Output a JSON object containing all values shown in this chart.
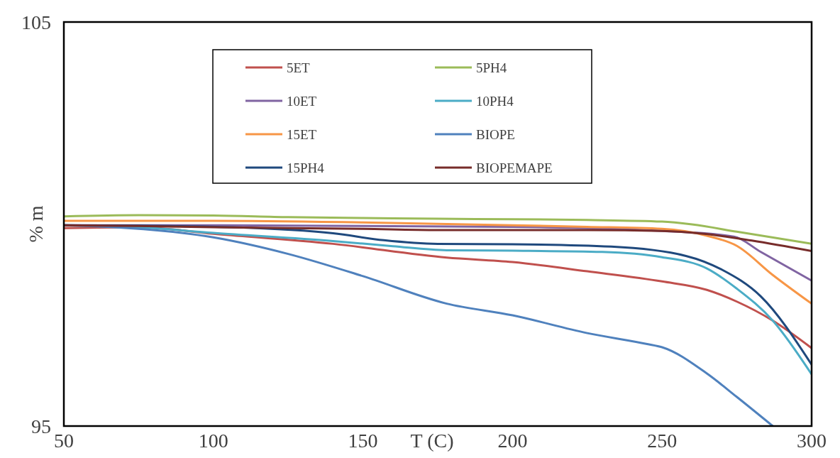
{
  "chart_data": {
    "type": "line",
    "xlabel": "T (C)",
    "ylabel": "% m",
    "xlim": [
      50,
      300
    ],
    "xticks": [
      50,
      100,
      150,
      200,
      250,
      300
    ],
    "ylim": [
      95,
      105
    ],
    "yticks": [
      95,
      105
    ],
    "legend": "top",
    "series": [
      {
        "name": "5ET",
        "color": "#c0504d",
        "x": [
          50,
          75,
          100,
          140,
          178,
          200,
          225,
          250,
          265,
          275,
          287,
          300
        ],
        "values": [
          99.9,
          99.92,
          99.76,
          99.51,
          99.17,
          99.06,
          98.83,
          98.58,
          98.37,
          98.08,
          97.61,
          96.93
        ]
      },
      {
        "name": "5PH4",
        "color": "#9bbb59",
        "x": [
          50,
          75,
          100,
          125,
          150,
          175,
          200,
          225,
          250,
          260,
          275,
          300
        ],
        "values": [
          100.19,
          100.22,
          100.21,
          100.17,
          100.15,
          100.13,
          100.12,
          100.1,
          100.06,
          99.99,
          99.81,
          99.51
        ]
      },
      {
        "name": "10ET",
        "color": "#8064a2",
        "x": [
          50,
          100,
          150,
          200,
          225,
          250,
          274,
          283,
          300
        ],
        "values": [
          99.97,
          99.97,
          99.95,
          99.93,
          99.9,
          99.83,
          99.69,
          99.31,
          98.6
        ]
      },
      {
        "name": "10PH4",
        "color": "#4bacc6",
        "x": [
          50,
          75,
          100,
          140,
          160,
          178,
          200,
          230,
          250,
          265,
          275,
          287,
          300
        ],
        "values": [
          99.97,
          99.92,
          99.78,
          99.58,
          99.45,
          99.35,
          99.34,
          99.31,
          99.18,
          98.9,
          98.4,
          97.61,
          96.28
        ]
      },
      {
        "name": "15ET",
        "color": "#f79646",
        "x": [
          50,
          100,
          150,
          200,
          225,
          250,
          265,
          275,
          287,
          300
        ],
        "values": [
          100.08,
          100.08,
          100.04,
          99.97,
          99.93,
          99.88,
          99.71,
          99.46,
          98.74,
          98.03
        ]
      },
      {
        "name": "BIOPE",
        "color": "#4f81bd",
        "x": [
          50,
          62,
          100,
          125,
          150,
          178,
          200,
          225,
          245,
          250,
          265,
          275,
          287
        ],
        "values": [
          99.97,
          99.94,
          99.67,
          99.26,
          98.71,
          98.03,
          97.74,
          97.3,
          97.03,
          96.95,
          96.3,
          95.72,
          95.0
        ]
      },
      {
        "name": "15PH4",
        "color": "#1f497d",
        "x": [
          50,
          75,
          106,
          140,
          157,
          175,
          200,
          233,
          258,
          270,
          283,
          300
        ],
        "values": [
          99.97,
          99.96,
          99.92,
          99.77,
          99.6,
          99.51,
          99.5,
          99.44,
          99.21,
          98.87,
          98.21,
          96.52
        ]
      },
      {
        "name": "BIOPEMAPE",
        "color": "#772c2a",
        "x": [
          50,
          75,
          100,
          150,
          175,
          200,
          225,
          250,
          264,
          280,
          300
        ],
        "values": [
          99.97,
          99.95,
          99.92,
          99.88,
          99.85,
          99.85,
          99.85,
          99.83,
          99.76,
          99.59,
          99.33
        ]
      }
    ]
  }
}
